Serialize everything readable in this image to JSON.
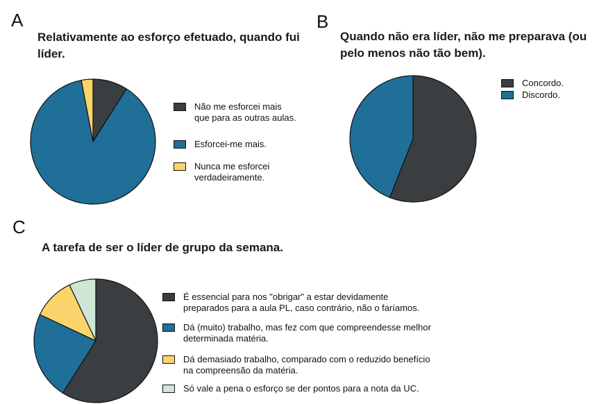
{
  "panels": {
    "a": {
      "letter": "A",
      "title_1": "Relativamente ao esforço efetuado, quando fui",
      "title_2": "líder."
    },
    "b": {
      "letter": "B",
      "title_1": "Quando não era líder, não me preparava (ou",
      "title_2": "pelo menos não tão bem)."
    },
    "c": {
      "letter": "C",
      "title": "A tarefa de ser o líder de grupo da semana."
    }
  },
  "colors": {
    "dark": "#3a3e41",
    "blue": "#1f6f99",
    "yellow": "#fbd46b",
    "mint": "#cde6d6"
  },
  "chart_data": [
    {
      "id": "A",
      "type": "pie",
      "title": "Relativamente ao esforço efetuado, quando fui líder.",
      "start_angle_deg": 0,
      "direction": "clockwise",
      "slices": [
        {
          "label": "Não me esforcei mais que para as outras aulas.",
          "value": 9,
          "color": "#3a3e41"
        },
        {
          "label": "Esforcei-me mais.",
          "value": 88,
          "color": "#1f6f99"
        },
        {
          "label": "Nunca me esforcei verdadeiramente.",
          "value": 3,
          "color": "#fbd46b"
        }
      ],
      "legend": [
        "Não me esforcei mais\nque para as outras aulas.",
        "Esforcei-me mais.",
        "Nunca me esforcei\nverdadeiramente."
      ]
    },
    {
      "id": "B",
      "type": "pie",
      "title": "Quando não era líder, não me preparava (ou pelo menos não tão bem).",
      "start_angle_deg": 0,
      "direction": "clockwise",
      "slices": [
        {
          "label": "Concordo.",
          "value": 56,
          "color": "#3a3e41"
        },
        {
          "label": "Discordo.",
          "value": 44,
          "color": "#1f6f99"
        }
      ],
      "legend": [
        "Concordo.",
        "Discordo."
      ]
    },
    {
      "id": "C",
      "type": "pie",
      "title": "A tarefa de ser o líder de grupo da semana.",
      "start_angle_deg": 0,
      "direction": "clockwise",
      "slices": [
        {
          "label": "É essencial para nos \"obrigar\" a estar devidamente preparados para a aula PL, caso contrário, não o faríamos.",
          "value": 59,
          "color": "#3a3e41"
        },
        {
          "label": "Dá (muito) trabalho, mas fez com que compreendesse melhor determinada matéria.",
          "value": 23,
          "color": "#1f6f99"
        },
        {
          "label": "Dá demasiado trabalho, comparado com o reduzido benefício na compreensão da matéria.",
          "value": 11,
          "color": "#fbd46b"
        },
        {
          "label": "Só vale a pena o esforço se der pontos para a nota da UC.",
          "value": 7,
          "color": "#cde6d6"
        }
      ],
      "legend": [
        "É essencial para nos \"obrigar\" a estar devidamente\npreparados para a aula PL, caso contrário, não o faríamos.",
        "Dá (muito) trabalho, mas fez com que compreendesse melhor\ndeterminada matéria.",
        "Dá demasiado trabalho, comparado com o reduzido benefício\nna compreensão da matéria.",
        "Só vale a pena o esforço se der pontos para a nota da UC."
      ]
    }
  ]
}
